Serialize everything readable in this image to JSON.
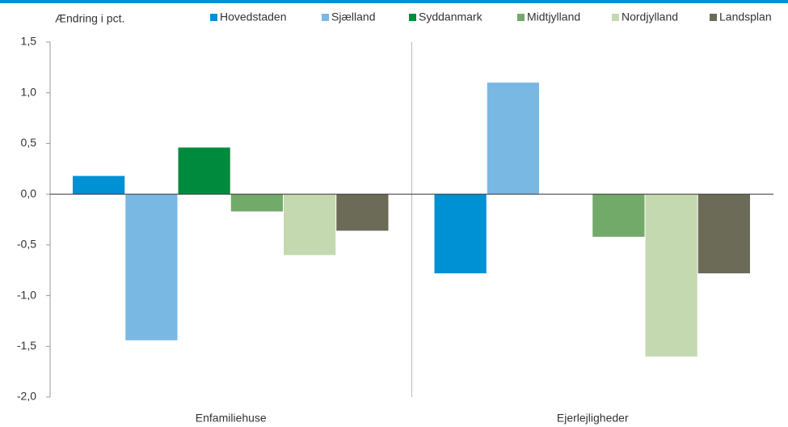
{
  "chart_data": {
    "type": "bar",
    "y_label": "Ændring i pct.",
    "categories": [
      "Enfamiliehuse",
      "Ejerlejligheder"
    ],
    "series": [
      {
        "name": "Hovedstaden",
        "color": "#0090d4",
        "values": [
          0.18,
          -0.78
        ]
      },
      {
        "name": "Sjælland",
        "color": "#7ab8e4",
        "values": [
          -1.44,
          1.1
        ]
      },
      {
        "name": "Syddanmark",
        "color": "#008a3e",
        "values": [
          0.46,
          null
        ]
      },
      {
        "name": "Midtjylland",
        "color": "#72aa6a",
        "values": [
          -0.17,
          -0.42
        ]
      },
      {
        "name": "Nordjylland",
        "color": "#c5d9b0",
        "values": [
          -0.6,
          -1.6
        ]
      },
      {
        "name": "Landsplan",
        "color": "#6b6b58",
        "values": [
          -0.36,
          -0.78
        ]
      }
    ],
    "ylim": [
      -2,
      1.5
    ],
    "yticks": [
      {
        "value": -2,
        "label": "-2,0"
      },
      {
        "value": -1.5,
        "label": "-1,5"
      },
      {
        "value": -1,
        "label": "-1,0"
      },
      {
        "value": -0.5,
        "label": "-0,5"
      },
      {
        "value": 0,
        "label": "0,0"
      },
      {
        "value": 0.5,
        "label": "0,5"
      },
      {
        "value": 1,
        "label": "1,0"
      },
      {
        "value": 1.5,
        "label": "1,5"
      }
    ],
    "legend": "top"
  }
}
